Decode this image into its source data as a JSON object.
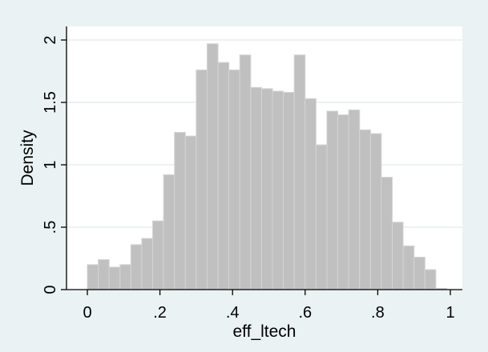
{
  "chart_data": {
    "type": "bar",
    "xlabel": "eff_ltech",
    "ylabel": "Density",
    "xlim": [
      0,
      1
    ],
    "ylim": [
      0,
      2
    ],
    "grid": true,
    "xticks": [
      {
        "value": 0,
        "label": "0"
      },
      {
        "value": 0.2,
        "label": ".2"
      },
      {
        "value": 0.4,
        "label": ".4"
      },
      {
        "value": 0.6,
        "label": ".6"
      },
      {
        "value": 0.8,
        "label": ".8"
      },
      {
        "value": 1,
        "label": "1"
      }
    ],
    "yticks": [
      {
        "value": 0,
        "label": "0"
      },
      {
        "value": 0.5,
        "label": ".5"
      },
      {
        "value": 1,
        "label": "1"
      },
      {
        "value": 1.5,
        "label": "1.5"
      },
      {
        "value": 2,
        "label": "2"
      }
    ],
    "bin_start": 0,
    "bin_width": 0.03,
    "values": [
      0.2,
      0.24,
      0.18,
      0.2,
      0.36,
      0.41,
      0.55,
      0.92,
      1.26,
      1.23,
      1.76,
      1.97,
      1.82,
      1.76,
      1.88,
      1.62,
      1.61,
      1.59,
      1.58,
      1.88,
      1.53,
      1.16,
      1.43,
      1.4,
      1.44,
      1.28,
      1.25,
      0.9,
      0.54,
      0.35,
      0.26,
      0.16,
      0.01
    ],
    "colors": {
      "background": "#eaf2f3",
      "plot_area": "#ffffff",
      "bar_fill": "#c0c0c0",
      "bar_edge": "#d4d4d4",
      "grid": "#e7eeef",
      "axis": "#000000"
    }
  }
}
